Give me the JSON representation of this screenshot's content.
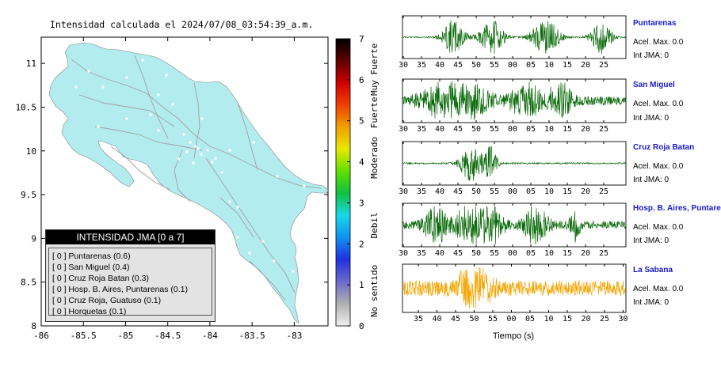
{
  "map": {
    "title": "Intensidad calculada el 2024/07/08_03:54:39_a.m.",
    "x_ticks": [
      "-86",
      "-85.5",
      "-85",
      "-84.5",
      "-84",
      "-83.5",
      "-83"
    ],
    "y_ticks": [
      "11",
      "10.5",
      "10",
      "9.5",
      "9",
      "8.5",
      "8"
    ],
    "colors": {
      "land": "#b3ecef",
      "road": "#9a9a9a",
      "city": "#ffffff"
    }
  },
  "legend": {
    "title": "INTENSIDAD JMA [0 a 7]",
    "stations": [
      "[ 0 ]  Puntarenas (0.6)",
      "[ 0 ]  San Miguel (0.4)",
      "[ 0 ]  Cruz Roja Batan (0.3)",
      "[ 0 ]  Hosp. B. Aires, Puntarenas (0.1)",
      "[ 0 ]  Cruz Roja, Guatuso (0.1)",
      "[ 0 ]  Horquetas (0.1)"
    ]
  },
  "colorbar": {
    "ticks": [
      "7",
      "6",
      "5",
      "4",
      "3",
      "2",
      "1",
      "0"
    ],
    "labels": [
      "Muy Fuerte",
      "Fuerte",
      "Moderado",
      "Debil",
      "No sentido"
    ],
    "colors": [
      "#f0f0f0",
      "#b0b0b0",
      "#6a6acc",
      "#2030e0",
      "#1090f0",
      "#18d8e8",
      "#10c040",
      "#60e000",
      "#e8e800",
      "#f0a000",
      "#f04000",
      "#d00000",
      "#600000",
      "#000000"
    ]
  },
  "traces": [
    {
      "name": "Puntarenas",
      "acel": "Acel. Max. 0.0",
      "int": "Int JMA: 0",
      "color": "#0a6a0a",
      "ticks": [
        "30",
        "35",
        "40",
        "45",
        "50",
        "55",
        "00",
        "05",
        "10",
        "15",
        "20",
        "25"
      ]
    },
    {
      "name": "San Miguel",
      "acel": "Acel. Max. 0.0",
      "int": "Int JMA: 0",
      "color": "#0a6a0a",
      "ticks": [
        "30",
        "35",
        "40",
        "45",
        "50",
        "55",
        "00",
        "05",
        "10",
        "15",
        "20",
        "25"
      ]
    },
    {
      "name": "Cruz Roja Batan",
      "acel": "Acel. Max. 0.0",
      "int": "Int JMA: 0",
      "color": "#0a6a0a",
      "ticks": [
        "30",
        "35",
        "40",
        "45",
        "50",
        "55",
        "00",
        "05",
        "10",
        "15",
        "20",
        "25"
      ]
    },
    {
      "name": "Hosp. B. Aires, Puntarenas",
      "acel": "Acel. Max. 0.0",
      "int": "Int JMA: 0",
      "color": "#0a6a0a",
      "ticks": [
        "30",
        "35",
        "40",
        "45",
        "50",
        "55",
        "00",
        "05",
        "10",
        "15",
        "20",
        "25"
      ]
    },
    {
      "name": "La Sabana",
      "acel": "Acel. Max. 0.0",
      "int": "Int JMA: 0",
      "color": "#f5a500",
      "ticks": [
        "35",
        "40",
        "45",
        "50",
        "55",
        "00",
        "05",
        "10",
        "15",
        "20",
        "25",
        "30"
      ]
    }
  ],
  "xlabel": "Tiempo (s)",
  "chart_data": [
    {
      "type": "heatmap",
      "title": "Intensidad calculada el 2024/07/08_03:54:39_a.m.",
      "xlim": [
        -86,
        -82.6
      ],
      "ylim": [
        8,
        11.3
      ],
      "colorbar_range": [
        0,
        7
      ]
    },
    {
      "type": "line",
      "series": [
        {
          "name": "Puntarenas",
          "bursts_at": [
            "38",
            "49",
            "05",
            "21"
          ]
        },
        {
          "name": "San Miguel",
          "bursts_at": [
            "38",
            "43",
            "57"
          ]
        },
        {
          "name": "Cruz Roja Batan",
          "bursts_at": [
            "47",
            "51"
          ]
        },
        {
          "name": "Hosp. B. Aires, Puntarenas",
          "bursts_at": [
            "37",
            "47",
            "57",
            "15"
          ]
        },
        {
          "name": "La Sabana",
          "bursts_at": [
            "50"
          ]
        }
      ]
    }
  ]
}
